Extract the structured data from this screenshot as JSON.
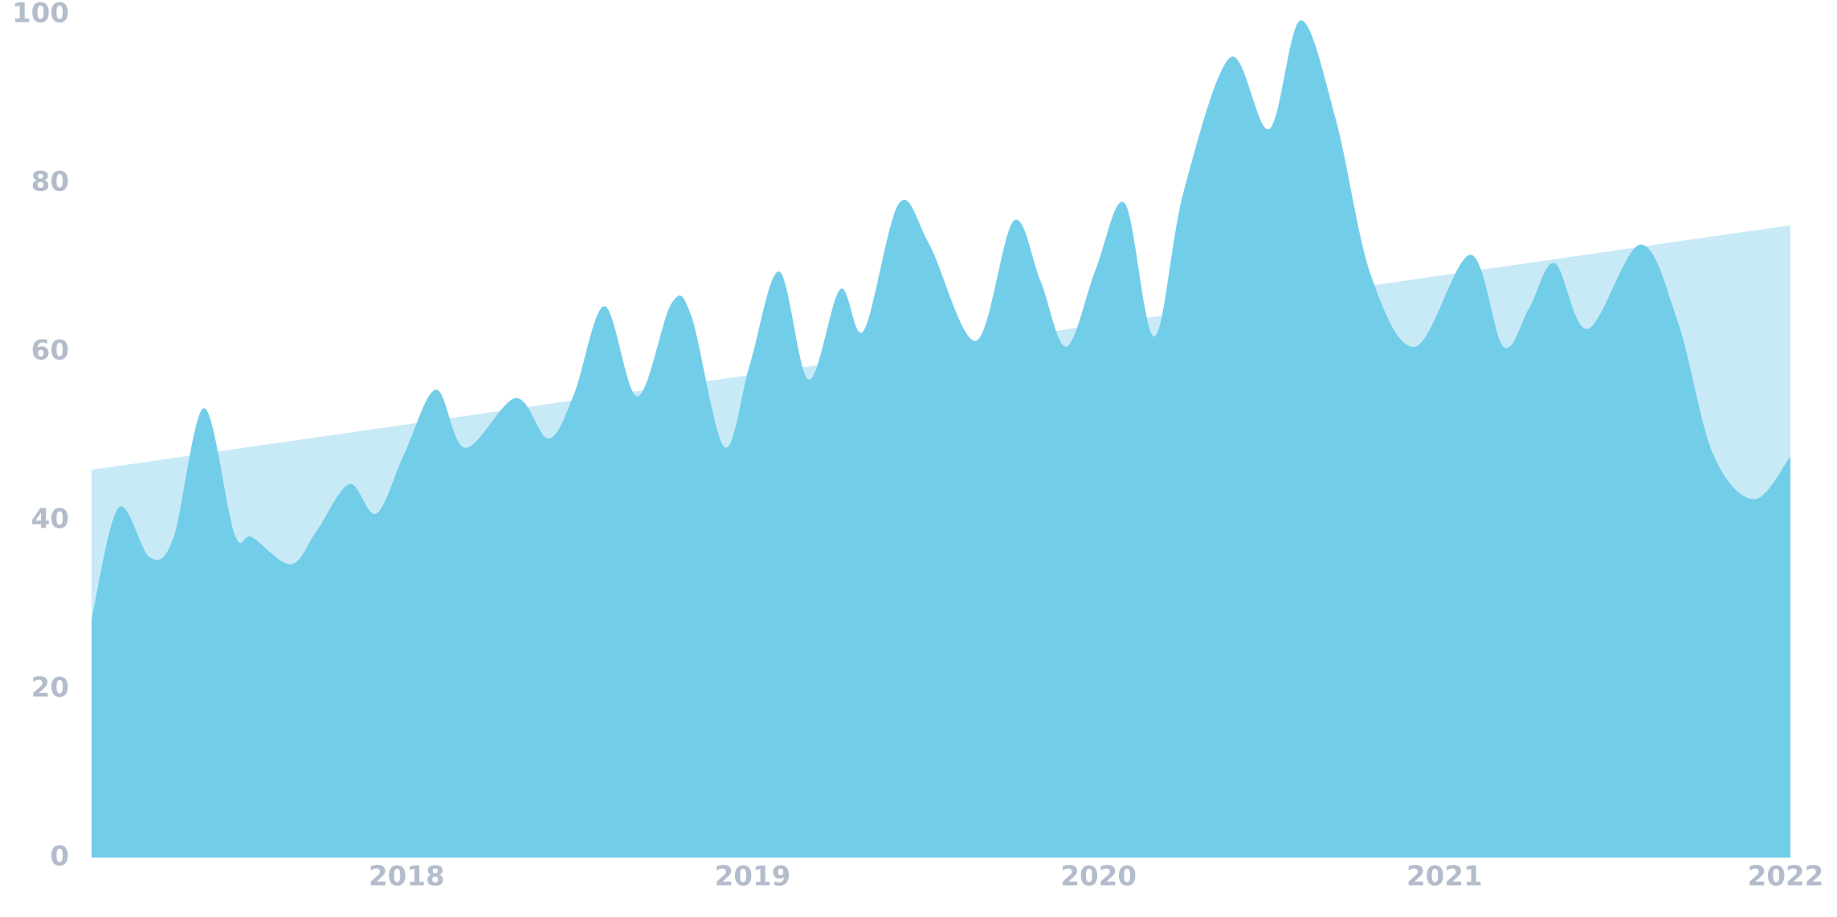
{
  "chart_data": {
    "type": "area",
    "xlim": [
      2017.089,
      2022.0
    ],
    "xticks": [
      2018,
      2019,
      2020,
      2021,
      2022
    ],
    "ylim": [
      0,
      100
    ],
    "yticks": [
      0,
      20,
      40,
      60,
      80,
      100
    ],
    "series": [
      {
        "color": "#c8eaf7",
        "x": [
          2017.089,
          2022.0
        ],
        "values": [
          46,
          75
        ]
      },
      {
        "color": "#72cde9",
        "x": [
          2017.089,
          2017.167,
          2017.258,
          2017.326,
          2017.414,
          2017.502,
          2017.553,
          2017.665,
          2017.739,
          2017.834,
          2017.912,
          2017.993,
          2018.085,
          2018.169,
          2018.315,
          2018.41,
          2018.484,
          2018.572,
          2018.667,
          2018.765,
          2018.823,
          2018.918,
          2018.992,
          2019.077,
          2019.162,
          2019.253,
          2019.321,
          2019.423,
          2019.511,
          2019.646,
          2019.754,
          2019.832,
          2019.907,
          2019.992,
          2020.076,
          2020.161,
          2020.246,
          2020.381,
          2020.493,
          2020.584,
          2020.686,
          2020.787,
          2020.916,
          2021.075,
          2021.17,
          2021.245,
          2021.319,
          2021.414,
          2021.566,
          2021.675,
          2021.776,
          2021.895,
          2022.0
        ],
        "values": [
          28.3,
          41.5,
          35.6,
          38,
          53.3,
          38.4,
          38,
          34.8,
          38.7,
          44.3,
          40.8,
          47.9,
          55.5,
          48.6,
          54.5,
          49.7,
          55,
          65.4,
          54.7,
          65.7,
          64.2,
          48.7,
          58.5,
          69.5,
          56.7,
          67.4,
          62.5,
          77.6,
          72.7,
          61.3,
          75.5,
          68.4,
          60.6,
          69.8,
          77.6,
          61.8,
          79,
          94.9,
          86.4,
          99.3,
          87.5,
          69.1,
          60.6,
          71.5,
          60.6,
          65.2,
          70.5,
          62.7,
          72.7,
          63.5,
          47.9,
          42.5,
          47.6
        ]
      }
    ]
  }
}
